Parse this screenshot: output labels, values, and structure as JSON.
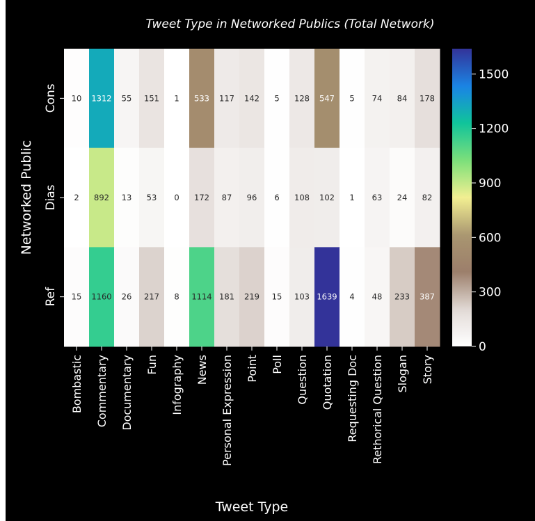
{
  "chart_data": {
    "type": "heatmap",
    "title": "Tweet Type in Networked Publics (Total Network)",
    "xlabel": "Tweet Type",
    "ylabel": "Networked Public",
    "categories": [
      "Bombastic",
      "Commentary",
      "Documentary",
      "Fun",
      "Infography",
      "News",
      "Personal Expression",
      "Point",
      "Poll",
      "Question",
      "Quotation",
      "Requesting Doc",
      "Rethorical Question",
      "Slogan",
      "Story"
    ],
    "rows": [
      "Cons",
      "Dias",
      "Ref"
    ],
    "values": [
      [
        10,
        1312,
        55,
        151,
        1,
        533,
        117,
        142,
        5,
        128,
        547,
        5,
        74,
        84,
        178
      ],
      [
        2,
        892,
        13,
        53,
        0,
        172,
        87,
        96,
        6,
        108,
        102,
        1,
        63,
        24,
        82
      ],
      [
        15,
        1160,
        26,
        217,
        8,
        1114,
        181,
        219,
        15,
        103,
        1639,
        4,
        48,
        233,
        387
      ]
    ],
    "vlim": [
      0,
      1639
    ],
    "colorbar_ticks": [
      0,
      300,
      600,
      900,
      1200,
      1500
    ],
    "colormap": "terrain_r",
    "colormap_stops": [
      {
        "t": 0.0,
        "color": "#ffffff"
      },
      {
        "t": 0.12,
        "color": "#e3dcd8"
      },
      {
        "t": 0.25,
        "color": "#9c7f6b"
      },
      {
        "t": 0.37,
        "color": "#a89470"
      },
      {
        "t": 0.5,
        "color": "#f2ef92"
      },
      {
        "t": 0.62,
        "color": "#80e07a"
      },
      {
        "t": 0.75,
        "color": "#10c49a"
      },
      {
        "t": 0.87,
        "color": "#1a86e6"
      },
      {
        "t": 1.0,
        "color": "#333399"
      }
    ],
    "background_color": "#000000",
    "text_color": "#ffffff"
  }
}
